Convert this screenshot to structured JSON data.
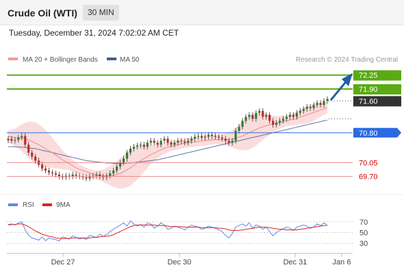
{
  "header": {
    "title": "Crude Oil (WTI)",
    "timeframe": "30 MIN"
  },
  "datetime": "Tuesday, December 31, 2024 7:02:02 AM CET",
  "legend": {
    "bollinger": "MA 20 + Bollinger Bands",
    "ma50": "MA 50"
  },
  "watermark": "Research © 2024 Trading Central",
  "colors": {
    "resistance": "#5aaa14",
    "support_line": "#3a78e0",
    "support_label": "#2a6ae0",
    "pivot": "#333333",
    "minor_support": "#ef8a8a",
    "minor_label_text": "#cc0000",
    "candle_up": "#2e7d32",
    "candle_down": "#c62828",
    "ma20": "#e98a8a",
    "ma50": "#5a73a8",
    "band_fill": "#fbdcdc",
    "arrow": "#1e5fa6",
    "rsi": "#5b8ae6",
    "rsi_ma": "#e02020"
  },
  "chart_data": [
    {
      "type": "line",
      "name": "price",
      "x_ticks": [
        "Dec 27",
        "Dec 30",
        "Dec 31",
        "Jan 6"
      ],
      "ylim": [
        69.35,
        72.45
      ],
      "levels": [
        {
          "value": 72.25,
          "label": "72.25",
          "kind": "resistance"
        },
        {
          "value": 71.9,
          "label": "71.90",
          "kind": "resistance"
        },
        {
          "value": 71.6,
          "label": "71.60",
          "kind": "pivot"
        },
        {
          "value": 70.8,
          "label": "70.80",
          "kind": "support"
        },
        {
          "value": 70.05,
          "label": "70.05",
          "kind": "minor"
        },
        {
          "value": 69.7,
          "label": "69.70",
          "kind": "minor"
        }
      ],
      "close": [
        70.65,
        70.6,
        70.62,
        70.68,
        70.72,
        70.5,
        70.3,
        70.2,
        70.1,
        70.0,
        69.9,
        69.85,
        69.8,
        69.78,
        69.75,
        69.7,
        69.68,
        69.72,
        69.7,
        69.75,
        69.72,
        69.7,
        69.68,
        69.65,
        69.7,
        69.72,
        69.75,
        69.7,
        69.68,
        69.72,
        69.78,
        69.85,
        69.95,
        70.05,
        70.15,
        70.3,
        70.4,
        70.45,
        70.48,
        70.5,
        70.45,
        70.55,
        70.6,
        70.55,
        70.5,
        70.6,
        70.65,
        70.55,
        70.5,
        70.55,
        70.6,
        70.58,
        70.55,
        70.6,
        70.65,
        70.7,
        70.72,
        70.68,
        70.7,
        70.75,
        70.72,
        70.7,
        70.68,
        70.65,
        70.6,
        70.55,
        70.6,
        70.85,
        70.95,
        71.1,
        71.2,
        71.25,
        71.15,
        71.3,
        71.35,
        71.2,
        71.25,
        71.1,
        71.0,
        71.05,
        71.1,
        71.15,
        71.2,
        71.25,
        71.2,
        71.3,
        71.35,
        71.4,
        71.45,
        71.42,
        71.5,
        71.55,
        71.5,
        71.6,
        71.65
      ],
      "ma20": [
        70.7,
        70.7,
        70.68,
        70.68,
        70.67,
        70.65,
        70.62,
        70.58,
        70.54,
        70.5,
        70.45,
        70.4,
        70.35,
        70.3,
        70.24,
        70.18,
        70.12,
        70.07,
        70.02,
        69.97,
        69.92,
        69.88,
        69.85,
        69.82,
        69.79,
        69.76,
        69.74,
        69.73,
        69.72,
        69.72,
        69.72,
        69.73,
        69.75,
        69.78,
        69.82,
        69.87,
        69.92,
        69.98,
        70.04,
        70.1,
        70.15,
        70.2,
        70.25,
        70.29,
        70.33,
        70.37,
        70.41,
        70.44,
        70.46,
        70.48,
        70.5,
        70.52,
        70.54,
        70.55,
        70.56,
        70.57,
        70.58,
        70.59,
        70.6,
        70.61,
        70.62,
        70.63,
        70.63,
        70.63,
        70.63,
        70.63,
        70.64,
        70.66,
        70.69,
        70.72,
        70.76,
        70.8,
        70.84,
        70.88,
        70.92,
        70.95,
        70.98,
        71.0,
        71.02,
        71.04,
        71.06,
        71.08,
        71.1,
        71.12,
        71.14,
        71.16,
        71.19,
        71.22,
        71.25,
        71.28,
        71.31,
        71.34,
        71.37,
        71.4,
        71.43
      ],
      "ma50": [
        70.45,
        70.45,
        70.45,
        70.44,
        70.44,
        70.43,
        70.42,
        70.41,
        70.4,
        70.38,
        70.36,
        70.34,
        70.32,
        70.3,
        70.28,
        70.26,
        70.24,
        70.22,
        70.2,
        70.18,
        70.16,
        70.14,
        70.12,
        70.1,
        70.09,
        70.08,
        70.07,
        70.06,
        70.05,
        70.04,
        70.04,
        70.03,
        70.03,
        70.03,
        70.03,
        70.04,
        70.04,
        70.05,
        70.06,
        70.07,
        70.08,
        70.09,
        70.1,
        70.11,
        70.12,
        70.14,
        70.16,
        70.18,
        70.2,
        70.22,
        70.24,
        70.26,
        70.28,
        70.3,
        70.32,
        70.34,
        70.36,
        70.38,
        70.4,
        70.42,
        70.44,
        70.46,
        70.48,
        70.5,
        70.52,
        70.54,
        70.56,
        70.58,
        70.6,
        70.62,
        70.64,
        70.66,
        70.68,
        70.7,
        70.72,
        70.74,
        70.76,
        70.78,
        70.8,
        70.82,
        70.84,
        70.86,
        70.88,
        70.9,
        70.92,
        70.94,
        70.96,
        70.98,
        71.0,
        71.02,
        71.04,
        71.06,
        71.08,
        71.1,
        71.12
      ],
      "band_width": [
        0.15,
        0.18,
        0.22,
        0.28,
        0.34,
        0.4,
        0.46,
        0.5,
        0.52,
        0.52,
        0.5,
        0.47,
        0.43,
        0.38,
        0.33,
        0.28,
        0.24,
        0.2,
        0.17,
        0.15,
        0.13,
        0.12,
        0.11,
        0.1,
        0.1,
        0.1,
        0.11,
        0.13,
        0.16,
        0.2,
        0.24,
        0.29,
        0.34,
        0.38,
        0.42,
        0.44,
        0.45,
        0.44,
        0.42,
        0.38,
        0.33,
        0.28,
        0.24,
        0.2,
        0.17,
        0.15,
        0.14,
        0.13,
        0.12,
        0.12,
        0.12,
        0.12,
        0.12,
        0.12,
        0.12,
        0.12,
        0.12,
        0.12,
        0.12,
        0.12,
        0.12,
        0.12,
        0.12,
        0.13,
        0.15,
        0.18,
        0.22,
        0.27,
        0.32,
        0.36,
        0.4,
        0.42,
        0.42,
        0.4,
        0.37,
        0.33,
        0.29,
        0.25,
        0.21,
        0.18,
        0.16,
        0.15,
        0.14,
        0.14,
        0.15,
        0.16,
        0.18,
        0.2,
        0.22,
        0.22,
        0.21,
        0.19,
        0.17,
        0.15,
        0.14
      ]
    },
    {
      "type": "line",
      "name": "rsi",
      "legend": [
        "RSI",
        "9MA"
      ],
      "ylim": [
        15,
        85
      ],
      "y_ticks": [
        70,
        50,
        30
      ],
      "rsi": [
        65,
        66,
        64,
        68,
        70,
        55,
        45,
        40,
        38,
        36,
        42,
        35,
        40,
        38,
        37,
        34,
        42,
        40,
        38,
        44,
        41,
        38,
        40,
        37,
        45,
        43,
        41,
        47,
        43,
        46,
        52,
        56,
        60,
        64,
        68,
        62,
        72,
        66,
        62,
        65,
        60,
        68,
        66,
        58,
        62,
        68,
        64,
        56,
        58,
        62,
        60,
        58,
        55,
        60,
        64,
        62,
        60,
        56,
        58,
        62,
        60,
        58,
        55,
        52,
        45,
        40,
        48,
        60,
        63,
        66,
        62,
        68,
        58,
        64,
        62,
        56,
        60,
        52,
        44,
        50,
        54,
        57,
        60,
        58,
        54,
        60,
        62,
        64,
        62,
        58,
        60,
        66,
        63,
        68,
        64
      ],
      "rsi_ma": [
        64,
        65,
        65,
        66,
        66,
        64,
        61,
        57,
        53,
        50,
        47,
        45,
        43,
        42,
        40,
        39,
        39,
        39,
        39,
        40,
        40,
        40,
        40,
        40,
        40,
        41,
        41,
        42,
        43,
        43,
        44,
        46,
        49,
        52,
        55,
        58,
        61,
        63,
        64,
        64,
        64,
        64,
        64,
        64,
        63,
        63,
        63,
        62,
        61,
        61,
        61,
        61,
        60,
        60,
        60,
        60,
        60,
        59,
        59,
        59,
        59,
        59,
        58,
        58,
        57,
        55,
        54,
        54,
        54,
        55,
        56,
        57,
        58,
        59,
        60,
        60,
        60,
        59,
        58,
        57,
        56,
        56,
        55,
        55,
        55,
        55,
        56,
        57,
        58,
        59,
        60,
        61,
        62,
        63,
        63
      ]
    }
  ]
}
